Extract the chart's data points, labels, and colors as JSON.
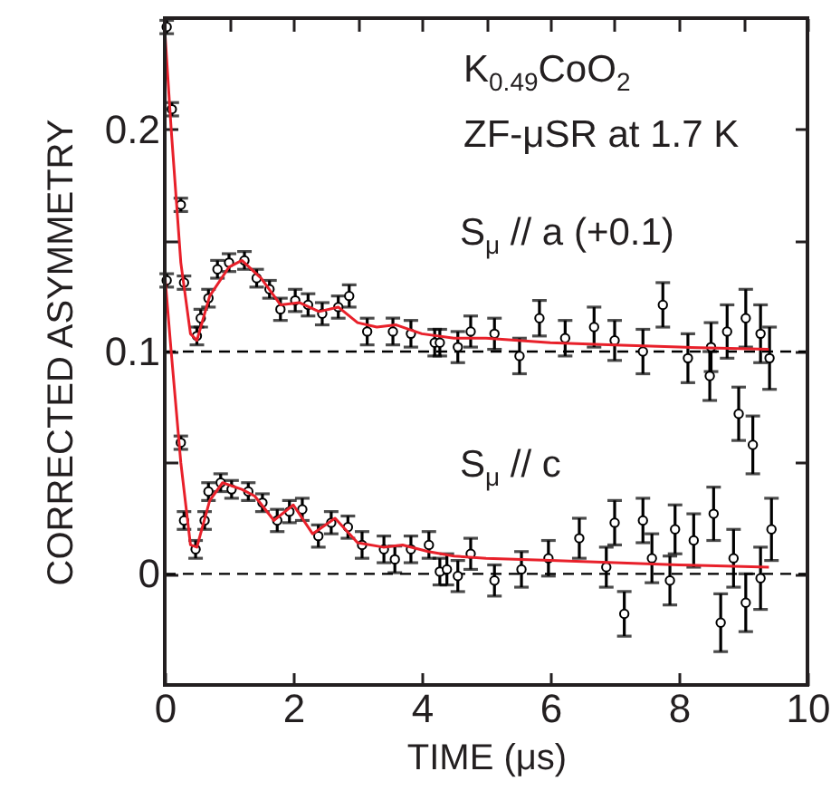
{
  "chart_data": {
    "type": "scatter",
    "title": "K$_{0.49}$CoO$_{2}$",
    "subtitle": "ZF-μSR at 1.7 K",
    "xlabel": "TIME (μs)",
    "ylabel": "CORRECTED ASYMMETRY",
    "xlim": [
      0,
      10
    ],
    "xticks": [
      0,
      {
        "value": 1,
        "label": null
      },
      2,
      {
        "value": 3,
        "label": null
      },
      4,
      {
        "value": 5,
        "label": null
      },
      6,
      {
        "value": 7,
        "label": null
      },
      8,
      {
        "value": 9,
        "label": null
      },
      10
    ],
    "ylim": [
      -0.05,
      0.25
    ],
    "yticks": [
      0,
      {
        "value": 0.05,
        "label": null
      },
      0.1,
      {
        "value": 0.15,
        "label": null
      },
      0.2
    ],
    "marker": "circle",
    "ref_lines": [
      {
        "axis": "y",
        "value": 0,
        "color": "#000000",
        "line_style": "dashed"
      },
      {
        "axis": "y",
        "value": 0.1,
        "color": "#000000",
        "line_style": "dashed"
      }
    ],
    "series": [
      {
        "name": "S$_{μ}$ // a (+0.1)",
        "color": "#000000",
        "x": [
          0.03,
          0.11,
          0.25,
          0.3,
          0.5,
          0.56,
          0.68,
          0.82,
          1.0,
          1.24,
          1.43,
          1.63,
          1.8,
          2.03,
          2.23,
          2.45,
          2.7,
          2.87,
          3.15,
          3.55,
          3.83,
          4.2,
          4.28,
          4.56,
          4.76,
          5.13,
          5.52,
          5.83,
          6.23,
          6.68,
          7.0,
          7.44,
          7.75,
          8.14,
          8.48,
          8.5,
          8.75,
          8.93,
          9.04,
          9.15,
          9.27,
          9.41
        ],
        "values": [
          0.246,
          0.209,
          0.166,
          0.131,
          0.107,
          0.115,
          0.124,
          0.137,
          0.14,
          0.141,
          0.133,
          0.128,
          0.119,
          0.123,
          0.121,
          0.117,
          0.12,
          0.125,
          0.109,
          0.109,
          0.108,
          0.104,
          0.104,
          0.102,
          0.109,
          0.108,
          0.098,
          0.115,
          0.106,
          0.111,
          0.105,
          0.1,
          0.121,
          0.097,
          0.089,
          0.102,
          0.109,
          0.072,
          0.115,
          0.058,
          0.108,
          0.097
        ],
        "errors": [
          0.003,
          0.003,
          0.003,
          0.003,
          0.004,
          0.004,
          0.004,
          0.004,
          0.004,
          0.004,
          0.004,
          0.004,
          0.005,
          0.005,
          0.005,
          0.005,
          0.005,
          0.005,
          0.006,
          0.006,
          0.006,
          0.006,
          0.006,
          0.007,
          0.007,
          0.007,
          0.008,
          0.008,
          0.008,
          0.009,
          0.009,
          0.01,
          0.01,
          0.011,
          0.011,
          0.011,
          0.012,
          0.012,
          0.013,
          0.013,
          0.013,
          0.014
        ]
      },
      {
        "name": "S$_{μ}$ // c",
        "color": "#000000",
        "x": [
          0.03,
          0.25,
          0.3,
          0.48,
          0.62,
          0.68,
          0.87,
          1.04,
          1.3,
          1.52,
          1.75,
          1.94,
          2.14,
          2.39,
          2.59,
          2.85,
          3.07,
          3.41,
          3.58,
          3.83,
          4.11,
          4.28,
          4.39,
          4.56,
          4.76,
          5.13,
          5.55,
          5.97,
          6.45,
          6.87,
          7.0,
          7.15,
          7.44,
          7.58,
          7.86,
          7.94,
          8.23,
          8.54,
          8.65,
          8.85,
          9.04,
          9.27,
          9.44
        ],
        "values": [
          0.132,
          0.059,
          0.024,
          0.011,
          0.024,
          0.037,
          0.041,
          0.038,
          0.037,
          0.032,
          0.024,
          0.028,
          0.029,
          0.017,
          0.023,
          0.021,
          0.013,
          0.011,
          0.0065,
          0.011,
          0.013,
          0.001,
          0.002,
          -0.001,
          0.009,
          -0.003,
          0.002,
          0.007,
          0.016,
          0.003,
          0.023,
          -0.018,
          0.024,
          0.007,
          -0.003,
          0.02,
          0.015,
          0.027,
          -0.022,
          0.007,
          -0.013,
          -0.002,
          0.02
        ],
        "errors": [
          0.003,
          0.003,
          0.004,
          0.004,
          0.004,
          0.004,
          0.004,
          0.004,
          0.004,
          0.004,
          0.005,
          0.005,
          0.005,
          0.005,
          0.005,
          0.005,
          0.006,
          0.006,
          0.006,
          0.006,
          0.006,
          0.006,
          0.007,
          0.007,
          0.007,
          0.007,
          0.008,
          0.008,
          0.009,
          0.009,
          0.01,
          0.01,
          0.01,
          0.011,
          0.011,
          0.011,
          0.012,
          0.012,
          0.013,
          0.013,
          0.013,
          0.014,
          0.014
        ]
      },
      {
        "type": "line",
        "color": "#e8202a",
        "marker": "none",
        "x": [
          0,
          0.1,
          0.25,
          0.4,
          0.5,
          0.7,
          1.0,
          1.2,
          1.5,
          1.8,
          2.1,
          2.4,
          2.7,
          3.0,
          3.3,
          3.6,
          4.0,
          4.5,
          5,
          6,
          7,
          8,
          9.4
        ],
        "values": [
          0.245,
          0.2,
          0.14,
          0.108,
          0.105,
          0.125,
          0.138,
          0.141,
          0.133,
          0.121,
          0.122,
          0.118,
          0.12,
          0.113,
          0.111,
          0.112,
          0.108,
          0.106,
          0.106,
          0.104,
          0.103,
          0.102,
          0.101
        ]
      },
      {
        "type": "line",
        "color": "#e8202a",
        "marker": "none",
        "x": [
          0,
          0.1,
          0.25,
          0.4,
          0.5,
          0.7,
          0.9,
          1.2,
          1.4,
          1.7,
          2.0,
          2.3,
          2.65,
          3.0,
          3.4,
          3.7,
          4.1,
          4.5,
          5,
          6,
          7,
          8,
          9.4
        ],
        "values": [
          0.135,
          0.1,
          0.05,
          0.013,
          0.012,
          0.033,
          0.041,
          0.038,
          0.035,
          0.024,
          0.031,
          0.018,
          0.025,
          0.014,
          0.012,
          0.013,
          0.01,
          0.008,
          0.007,
          0.006,
          0.005,
          0.004,
          0.003
        ]
      }
    ]
  }
}
